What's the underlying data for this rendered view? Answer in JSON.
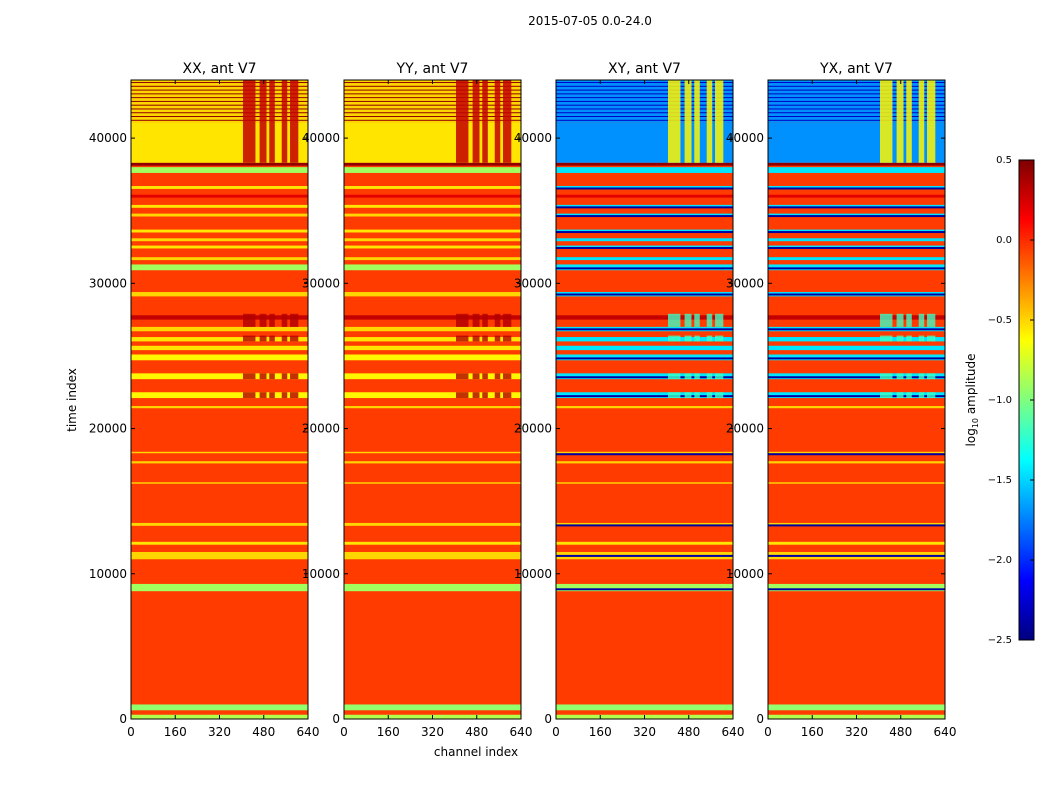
{
  "chart_data": {
    "type": "heatmap",
    "suptitle": "2015-07-05 0.0-24.0",
    "xlabel": "channel index",
    "ylabel": "time index",
    "xlim": [
      0,
      640
    ],
    "ylim": [
      0,
      44000
    ],
    "x_ticks": [
      0,
      160,
      320,
      480,
      640
    ],
    "y_ticks": [
      0,
      10000,
      20000,
      30000,
      40000
    ],
    "x_tick_labels": [
      "0",
      "160",
      "320",
      "480",
      "640"
    ],
    "y_tick_labels": [
      "0",
      "10000",
      "20000",
      "30000",
      "40000"
    ],
    "panels": [
      {
        "title": "XX, ant V7",
        "kind": "auto"
      },
      {
        "title": "YY, ant V7",
        "kind": "auto"
      },
      {
        "title": "XY, ant V7",
        "kind": "cross"
      },
      {
        "title": "YX, ant V7",
        "kind": "cross"
      }
    ],
    "colorbar": {
      "label": "log10 amplitude",
      "label_main": "log",
      "label_sub": "10",
      "label_rest": " amplitude",
      "min": -2.5,
      "max": 0.5,
      "ticks": [
        0.5,
        0.0,
        -0.5,
        -1.0,
        -1.5,
        -2.0,
        -2.5
      ],
      "tick_labels": [
        "0.5",
        "0.0",
        "−0.5",
        "−1.0",
        "−1.5",
        "−2.0",
        "−2.5"
      ],
      "colormap": "jet"
    },
    "background_level": -0.05,
    "bands": [
      {
        "start": 0,
        "end": 300,
        "level": -0.85
      },
      {
        "start": 300,
        "end": 600,
        "level": -0.05
      },
      {
        "start": 600,
        "end": 1000,
        "level": -0.95
      },
      {
        "start": 8800,
        "end": 9300,
        "level": -0.9
      },
      {
        "start": 11000,
        "end": 11500,
        "level": -0.5
      },
      {
        "start": 12000,
        "end": 12200,
        "level": -0.55
      },
      {
        "start": 13300,
        "end": 13500,
        "level": -0.5
      },
      {
        "start": 16200,
        "end": 16300,
        "level": -0.5
      },
      {
        "start": 17600,
        "end": 17750,
        "level": -0.5
      },
      {
        "start": 18300,
        "end": 18400,
        "level": -0.5
      },
      {
        "start": 21400,
        "end": 21550,
        "level": -0.5
      },
      {
        "start": 22100,
        "end": 22500,
        "level": -0.6
      },
      {
        "start": 23400,
        "end": 23800,
        "level": -0.6
      },
      {
        "start": 24700,
        "end": 25100,
        "level": -0.6
      },
      {
        "start": 25400,
        "end": 25700,
        "level": -0.55
      },
      {
        "start": 26000,
        "end": 26300,
        "level": -0.55
      },
      {
        "start": 26700,
        "end": 27000,
        "level": -0.5
      },
      {
        "start": 27500,
        "end": 27800,
        "level": 0.3
      },
      {
        "start": 29100,
        "end": 29400,
        "level": -0.5
      },
      {
        "start": 30900,
        "end": 31300,
        "level": -0.9
      },
      {
        "start": 31600,
        "end": 31800,
        "level": -0.5
      },
      {
        "start": 32400,
        "end": 32600,
        "level": -0.55
      },
      {
        "start": 32900,
        "end": 33100,
        "level": -0.5
      },
      {
        "start": 33500,
        "end": 33700,
        "level": -0.55
      },
      {
        "start": 34600,
        "end": 34800,
        "level": -0.5
      },
      {
        "start": 35200,
        "end": 35400,
        "level": -0.55
      },
      {
        "start": 35900,
        "end": 36100,
        "level": 0.2
      },
      {
        "start": 36500,
        "end": 36700,
        "level": -0.55
      },
      {
        "start": 37600,
        "end": 38000,
        "level": -0.9
      },
      {
        "start": 38100,
        "end": 38300,
        "level": 0.45
      },
      {
        "start": 38300,
        "end": 41100,
        "level": -0.55
      },
      {
        "start": 41100,
        "end": 44000,
        "level": -0.5
      }
    ],
    "rfi_channel_ranges": [
      [
        405,
        450
      ],
      [
        465,
        490
      ],
      [
        500,
        520
      ],
      [
        545,
        565
      ],
      [
        575,
        605
      ]
    ]
  }
}
